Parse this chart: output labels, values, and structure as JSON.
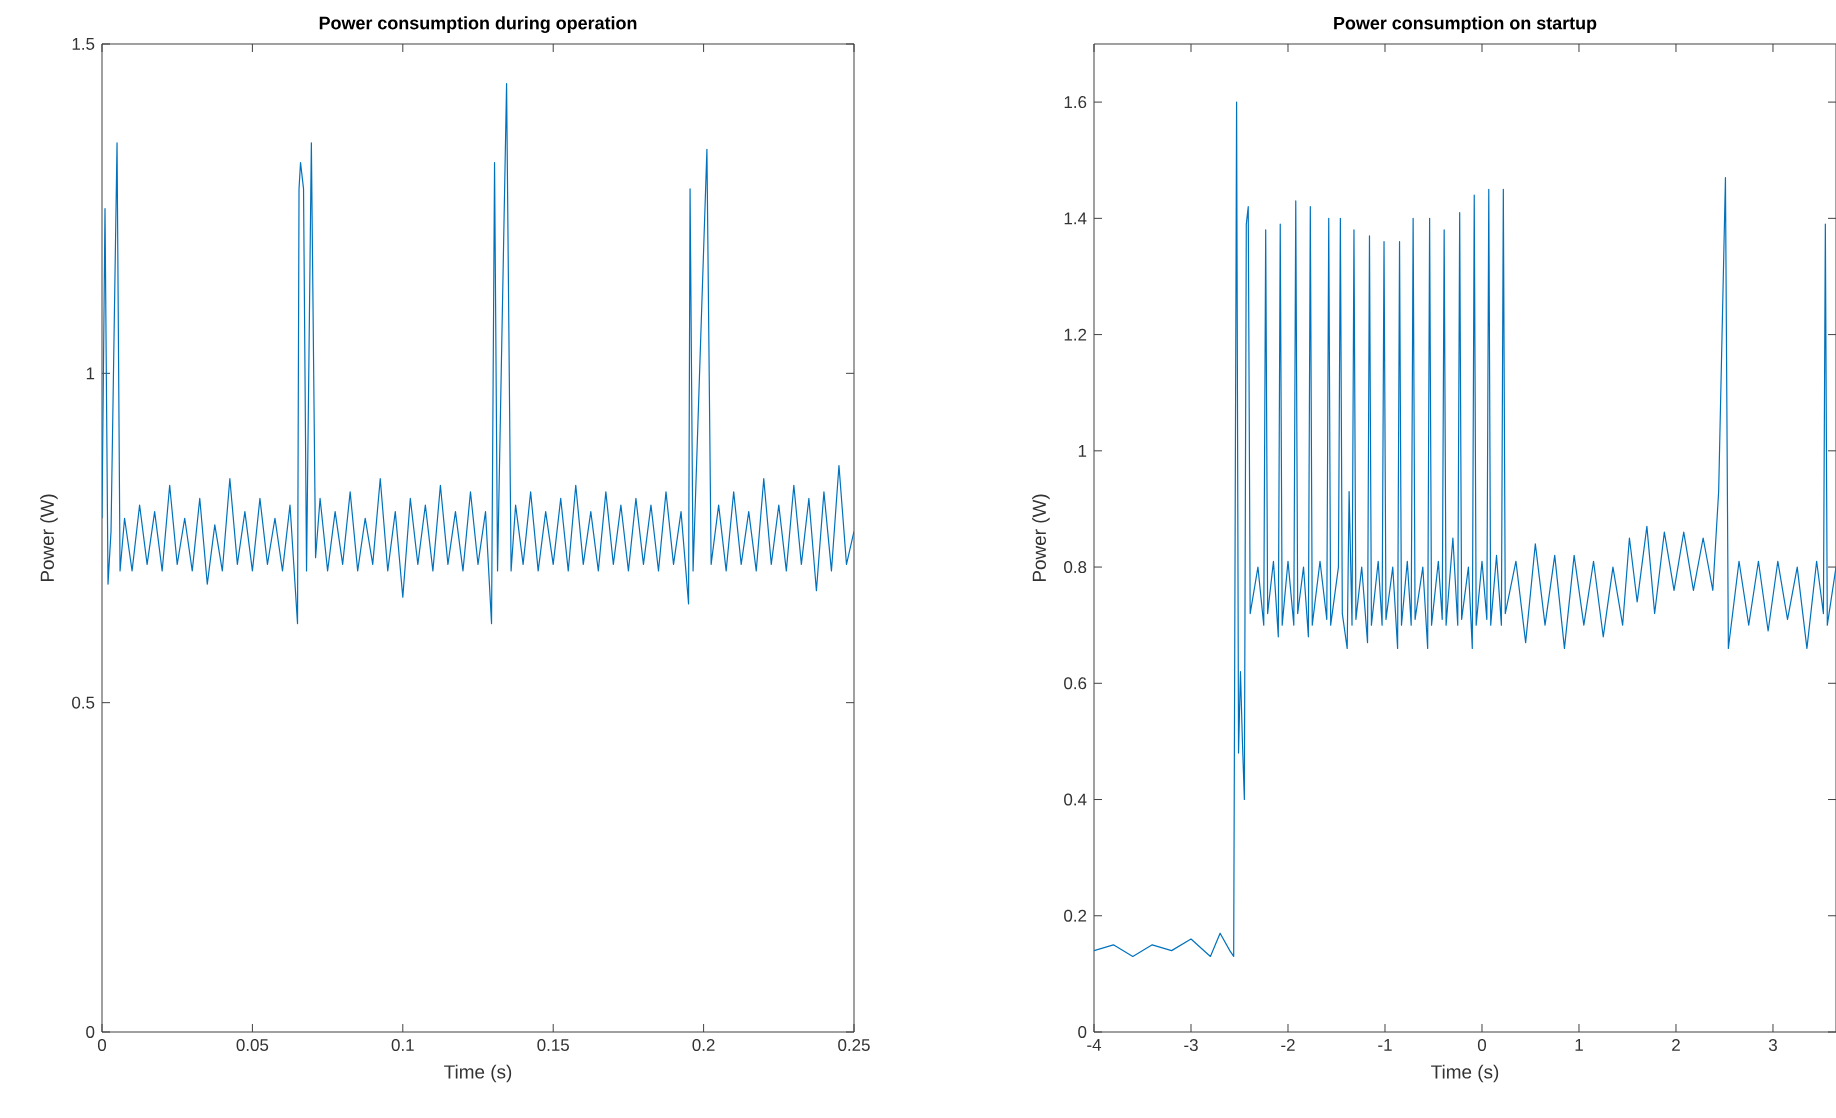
{
  "chart_data": [
    {
      "type": "line",
      "title": "Power consumption during operation",
      "xlabel": "Time (s)",
      "ylabel": "Power (W)",
      "xlim": [
        0,
        0.25
      ],
      "ylim": [
        0,
        1.5
      ],
      "xticks": [
        0,
        0.05,
        0.1,
        0.15,
        0.2,
        0.25
      ],
      "yticks": [
        0,
        0.5,
        1,
        1.5
      ],
      "x": [
        0,
        0.001,
        0.002,
        0.003,
        0.005,
        0.006,
        0.0075,
        0.01,
        0.0125,
        0.015,
        0.0175,
        0.02,
        0.0225,
        0.025,
        0.0275,
        0.03,
        0.0325,
        0.035,
        0.0375,
        0.04,
        0.0425,
        0.045,
        0.0475,
        0.05,
        0.0525,
        0.055,
        0.0575,
        0.06,
        0.0625,
        0.065,
        0.0655,
        0.066,
        0.067,
        0.068,
        0.0696,
        0.071,
        0.0725,
        0.075,
        0.0775,
        0.08,
        0.0825,
        0.085,
        0.0875,
        0.09,
        0.0925,
        0.095,
        0.0975,
        0.1,
        0.1025,
        0.105,
        0.1075,
        0.11,
        0.1125,
        0.115,
        0.1175,
        0.12,
        0.1225,
        0.125,
        0.1275,
        0.1295,
        0.1305,
        0.1315,
        0.1345,
        0.136,
        0.1375,
        0.14,
        0.1425,
        0.145,
        0.1475,
        0.15,
        0.1525,
        0.155,
        0.1575,
        0.16,
        0.1625,
        0.165,
        0.1675,
        0.17,
        0.1725,
        0.175,
        0.1775,
        0.18,
        0.1825,
        0.185,
        0.1875,
        0.19,
        0.1925,
        0.195,
        0.1955,
        0.1965,
        0.2011,
        0.2025,
        0.205,
        0.2075,
        0.21,
        0.2125,
        0.215,
        0.2175,
        0.22,
        0.2225,
        0.225,
        0.2275,
        0.23,
        0.2325,
        0.235,
        0.2375,
        0.24,
        0.2425,
        0.245,
        0.2475,
        0.25
      ],
      "series": [
        {
          "color": "#0072bd",
          "values": [
            0.78,
            1.25,
            0.68,
            0.76,
            1.35,
            0.7,
            0.78,
            0.7,
            0.8,
            0.71,
            0.79,
            0.7,
            0.83,
            0.71,
            0.78,
            0.7,
            0.81,
            0.68,
            0.77,
            0.7,
            0.84,
            0.71,
            0.79,
            0.7,
            0.81,
            0.71,
            0.78,
            0.7,
            0.8,
            0.62,
            1.28,
            1.32,
            1.28,
            0.7,
            1.35,
            0.72,
            0.81,
            0.7,
            0.79,
            0.71,
            0.82,
            0.7,
            0.78,
            0.71,
            0.84,
            0.7,
            0.79,
            0.66,
            0.81,
            0.71,
            0.8,
            0.7,
            0.83,
            0.71,
            0.79,
            0.7,
            0.82,
            0.71,
            0.79,
            0.62,
            1.32,
            0.7,
            1.44,
            0.7,
            0.8,
            0.71,
            0.82,
            0.7,
            0.79,
            0.71,
            0.81,
            0.7,
            0.83,
            0.71,
            0.79,
            0.7,
            0.82,
            0.71,
            0.8,
            0.7,
            0.81,
            0.71,
            0.8,
            0.7,
            0.82,
            0.71,
            0.79,
            0.65,
            1.28,
            0.7,
            1.34,
            0.71,
            0.8,
            0.7,
            0.82,
            0.71,
            0.79,
            0.7,
            0.84,
            0.71,
            0.8,
            0.7,
            0.83,
            0.71,
            0.81,
            0.67,
            0.82,
            0.7,
            0.86,
            0.71,
            0.76
          ]
        }
      ]
    },
    {
      "type": "line",
      "title": "Power consumption on startup",
      "xlabel": "Time (s)",
      "ylabel": "Power (W)",
      "xlim": [
        -4,
        3.65
      ],
      "ylim": [
        0,
        1.7
      ],
      "xticks": [
        -4,
        -3,
        -2,
        -1,
        0,
        1,
        2,
        3
      ],
      "yticks": [
        0,
        0.2,
        0.4,
        0.6,
        0.8,
        1,
        1.2,
        1.4,
        1.6
      ],
      "x": [
        -4,
        -3.8,
        -3.6,
        -3.4,
        -3.2,
        -3.0,
        -2.8,
        -2.7,
        -2.6,
        -2.56,
        -2.53,
        -2.51,
        -2.49,
        -2.47,
        -2.45,
        -2.43,
        -2.41,
        -2.39,
        -2.31,
        -2.25,
        -2.23,
        -2.21,
        -2.15,
        -2.1,
        -2.08,
        -2.06,
        -2.0,
        -1.94,
        -1.92,
        -1.9,
        -1.84,
        -1.79,
        -1.77,
        -1.75,
        -1.67,
        -1.6,
        -1.58,
        -1.56,
        -1.48,
        -1.46,
        -1.44,
        -1.39,
        -1.37,
        -1.34,
        -1.32,
        -1.3,
        -1.24,
        -1.18,
        -1.16,
        -1.14,
        -1.07,
        -1.03,
        -1.01,
        -0.99,
        -0.92,
        -0.87,
        -0.85,
        -0.83,
        -0.77,
        -0.73,
        -0.71,
        -0.69,
        -0.61,
        -0.56,
        -0.54,
        -0.52,
        -0.45,
        -0.41,
        -0.39,
        -0.37,
        -0.3,
        -0.25,
        -0.23,
        -0.21,
        -0.14,
        -0.1,
        -0.08,
        -0.06,
        0.0,
        0.05,
        0.07,
        0.09,
        0.15,
        0.2,
        0.22,
        0.24,
        0.35,
        0.45,
        0.55,
        0.65,
        0.75,
        0.85,
        0.95,
        1.05,
        1.15,
        1.25,
        1.35,
        1.45,
        1.52,
        1.6,
        1.7,
        1.78,
        1.88,
        1.98,
        2.08,
        2.18,
        2.28,
        2.38,
        2.44,
        2.51,
        2.54,
        2.65,
        2.75,
        2.85,
        2.95,
        3.05,
        3.15,
        3.25,
        3.35,
        3.45,
        3.52,
        3.54,
        3.56,
        3.65
      ],
      "series": [
        {
          "color": "#0072bd",
          "values": [
            0.14,
            0.15,
            0.13,
            0.15,
            0.14,
            0.16,
            0.13,
            0.17,
            0.14,
            0.13,
            1.6,
            0.48,
            0.62,
            0.5,
            0.4,
            1.39,
            1.42,
            0.72,
            0.8,
            0.7,
            1.38,
            0.72,
            0.81,
            0.68,
            1.39,
            0.7,
            0.81,
            0.7,
            1.43,
            0.72,
            0.8,
            0.68,
            1.42,
            0.7,
            0.81,
            0.71,
            1.4,
            0.7,
            0.8,
            1.4,
            0.72,
            0.66,
            0.93,
            0.7,
            1.38,
            0.71,
            0.8,
            0.67,
            1.37,
            0.7,
            0.81,
            0.7,
            1.36,
            0.71,
            0.8,
            0.66,
            1.36,
            0.7,
            0.81,
            0.7,
            1.4,
            0.71,
            0.8,
            0.66,
            1.4,
            0.7,
            0.81,
            0.71,
            1.38,
            0.7,
            0.85,
            0.7,
            1.41,
            0.71,
            0.8,
            0.66,
            1.44,
            0.7,
            0.81,
            0.71,
            1.45,
            0.7,
            0.82,
            0.7,
            1.45,
            0.72,
            0.81,
            0.67,
            0.84,
            0.7,
            0.82,
            0.66,
            0.82,
            0.7,
            0.81,
            0.68,
            0.8,
            0.7,
            0.85,
            0.74,
            0.87,
            0.72,
            0.86,
            0.76,
            0.86,
            0.76,
            0.85,
            0.76,
            0.93,
            1.47,
            0.66,
            0.81,
            0.7,
            0.81,
            0.69,
            0.81,
            0.71,
            0.8,
            0.66,
            0.81,
            0.72,
            1.39,
            0.7,
            0.8
          ]
        }
      ]
    }
  ]
}
